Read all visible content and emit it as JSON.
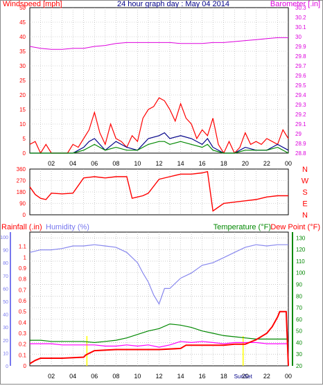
{
  "chart_data": [
    {
      "type": "line",
      "title": "24 hour graph day : May 04 2014",
      "ylabel_left": "Windspeed [mph]",
      "ylabel_right": "Barometer [.in]",
      "x_ticks": [
        "02",
        "04",
        "06",
        "08",
        "10",
        "12",
        "14",
        "16",
        "18",
        "20",
        "22",
        "00"
      ],
      "ylim_left": [
        0,
        50
      ],
      "yticks_left": [
        0,
        5,
        10,
        15,
        20,
        25,
        30,
        35,
        40,
        45,
        50
      ],
      "ylim_right": [
        28.8,
        30.3
      ],
      "yticks_right": [
        "28.8",
        "28.9",
        "29",
        "29.1",
        "29.2",
        "29.3",
        "29.4",
        "29.5",
        "29.6",
        "29.7",
        "29.8",
        "29.9",
        "30",
        "30.1",
        "30.2",
        "30.3"
      ],
      "grid": true,
      "series": [
        {
          "name": "Barometer",
          "axis": "right",
          "color": "#dd00dd",
          "x": [
            0,
            1,
            2,
            3,
            4,
            5,
            6,
            7,
            8,
            9,
            10,
            11,
            12,
            13,
            14,
            15,
            16,
            17,
            18,
            19,
            20,
            21,
            22,
            23,
            24
          ],
          "values": [
            29.9,
            29.88,
            29.87,
            29.87,
            29.88,
            29.88,
            29.9,
            29.91,
            29.93,
            29.94,
            29.94,
            29.94,
            29.94,
            29.94,
            29.93,
            29.93,
            29.93,
            29.94,
            29.94,
            29.95,
            29.96,
            29.97,
            29.98,
            29.99,
            29.99
          ]
        },
        {
          "name": "Wind gust",
          "axis": "left",
          "color": "#ff0000",
          "x": [
            0,
            0.5,
            1,
            1.5,
            2,
            2.5,
            3,
            3.5,
            4,
            4.5,
            5,
            5.5,
            6,
            6.5,
            7,
            7.5,
            8,
            8.5,
            9,
            9.5,
            10,
            10.5,
            11,
            11.5,
            12,
            12.5,
            13,
            13.5,
            14,
            14.5,
            15,
            15.5,
            16,
            16.5,
            17,
            17.5,
            18,
            18.5,
            19,
            19.5,
            20,
            20.5,
            21,
            21.5,
            22,
            22.5,
            23,
            23.5,
            24
          ],
          "values": [
            3,
            4,
            0,
            3,
            0,
            0,
            0,
            0,
            3,
            2,
            5,
            8,
            14,
            7,
            3,
            10,
            5,
            4,
            2,
            6,
            4,
            12,
            15,
            16,
            19,
            18,
            15,
            11,
            17,
            12,
            10,
            5,
            8,
            6,
            12,
            3,
            0,
            4,
            0,
            2,
            7,
            3,
            4,
            3,
            5,
            4,
            3,
            8,
            5
          ]
        },
        {
          "name": "Wind speed",
          "axis": "left",
          "color": "#000088",
          "x": [
            0,
            1,
            2,
            3,
            4,
            5,
            5.5,
            6,
            6.5,
            7,
            8,
            9,
            10,
            11,
            12,
            12.5,
            13,
            14,
            15,
            16,
            16.5,
            17,
            18,
            19,
            20,
            21,
            22,
            23,
            24
          ],
          "values": [
            0,
            0,
            0,
            0,
            0,
            2,
            4,
            5,
            3,
            1,
            4,
            2,
            1,
            5,
            6,
            7,
            5,
            6,
            5,
            3,
            5,
            2,
            0,
            0,
            2,
            1,
            1,
            3,
            1
          ]
        },
        {
          "name": "Wind average",
          "axis": "left",
          "color": "#008800",
          "x": [
            0,
            1,
            2,
            3,
            4,
            5,
            5.5,
            6,
            6.5,
            7,
            8,
            9,
            10,
            11,
            12,
            12.5,
            13,
            14,
            15,
            16,
            16.5,
            17,
            18,
            19,
            20,
            21,
            22,
            23,
            24
          ],
          "values": [
            0,
            0,
            0,
            0,
            0,
            1,
            2,
            3,
            2,
            1,
            2,
            1,
            1,
            3,
            4,
            4,
            3,
            4,
            3,
            2,
            3,
            1,
            0,
            0,
            1,
            1,
            1,
            2,
            0
          ]
        }
      ]
    },
    {
      "type": "line",
      "ylabel": "Wind direction",
      "ylim": [
        0,
        360
      ],
      "yticks": [
        0,
        90,
        180,
        270,
        360
      ],
      "compass_labels": [
        "N",
        "W",
        "S",
        "E",
        "N"
      ],
      "x_ticks": [
        "02",
        "04",
        "06",
        "08",
        "10",
        "12",
        "14",
        "16",
        "18",
        "20",
        "22",
        "00"
      ],
      "series": [
        {
          "name": "Wind direction",
          "color": "#ff0000",
          "x": [
            0,
            0.5,
            1,
            1.5,
            2,
            3,
            4,
            5,
            6,
            7,
            8,
            9,
            9.5,
            10,
            10.5,
            11,
            12,
            13,
            14,
            15,
            16,
            16.5,
            17,
            17.5,
            18,
            19,
            20,
            21,
            22,
            23,
            24
          ],
          "values": [
            220,
            160,
            130,
            120,
            170,
            165,
            170,
            290,
            300,
            290,
            300,
            300,
            130,
            140,
            150,
            170,
            280,
            300,
            320,
            320,
            330,
            340,
            30,
            60,
            90,
            100,
            110,
            120,
            140,
            150,
            150
          ]
        }
      ]
    },
    {
      "type": "line",
      "ylabel_left_1": "Rainfall (.in)",
      "ylabel_left_2": "Humidity (%)",
      "ylabel_right_1": "Temperature (°F)",
      "ylabel_right_2": "Dew Point (°F)",
      "x_ticks": [
        "02",
        "04",
        "06",
        "08",
        "10",
        "12",
        "14",
        "16",
        "18",
        "20",
        "22",
        "00"
      ],
      "annotation": "SunSet",
      "humidity_ticks": [
        0,
        10,
        20,
        30,
        40,
        50,
        60,
        70,
        80,
        90,
        100
      ],
      "rain_ticks": [
        "0",
        "0.1",
        "0.2",
        "0.3",
        "0.4",
        "0.5",
        "0.6",
        "0.7",
        "0.8",
        "0.9",
        "1",
        "1.1"
      ],
      "temp_ticks": [
        20,
        30,
        40,
        50,
        60,
        70,
        80,
        90,
        100,
        110,
        120,
        130
      ],
      "ylim_humidity": [
        0,
        100
      ],
      "ylim_rain": [
        0,
        1.2
      ],
      "ylim_temp": [
        20,
        135
      ],
      "series": [
        {
          "name": "Humidity",
          "axis": "humidity",
          "color": "#8888ee",
          "x": [
            0,
            1,
            2,
            3,
            4,
            5,
            6,
            7,
            8,
            9,
            10,
            10.5,
            11,
            11.5,
            12,
            12.5,
            13,
            14,
            15,
            16,
            17,
            18,
            19,
            20,
            21,
            22,
            23,
            24
          ],
          "values": [
            88,
            90,
            90,
            91,
            93,
            93,
            94,
            93,
            92,
            88,
            80,
            72,
            65,
            55,
            48,
            60,
            60,
            68,
            72,
            78,
            80,
            84,
            88,
            92,
            94,
            93,
            94,
            94
          ]
        },
        {
          "name": "Temperature",
          "axis": "temp",
          "color": "#008800",
          "x": [
            0,
            1,
            2,
            3,
            4,
            5,
            6,
            7,
            8,
            9,
            10,
            11,
            12,
            13,
            14,
            15,
            16,
            17,
            18,
            19,
            20,
            21,
            22,
            23,
            24
          ],
          "values": [
            42,
            42,
            41,
            41,
            41,
            41,
            40,
            41,
            42,
            44,
            47,
            50,
            52,
            56,
            55,
            53,
            50,
            48,
            46,
            45,
            44,
            43,
            43,
            43,
            43
          ]
        },
        {
          "name": "Dew Point",
          "axis": "temp",
          "color": "#ff00ff",
          "x": [
            0,
            1,
            2,
            3,
            4,
            5,
            6,
            7,
            8,
            9,
            10,
            11,
            12,
            13,
            14,
            15,
            16,
            17,
            18,
            19,
            20,
            21,
            22,
            23,
            24
          ],
          "values": [
            39,
            39,
            39,
            38,
            38,
            38,
            38,
            37,
            37,
            38,
            37,
            38,
            36,
            38,
            41,
            40,
            41,
            40,
            39,
            40,
            40,
            40,
            39,
            39,
            39
          ]
        },
        {
          "name": "Rainfall",
          "axis": "rain",
          "color": "#ff0000",
          "x": [
            0,
            0.5,
            1,
            3,
            5,
            5.2,
            6,
            8,
            10,
            12,
            14,
            14.5,
            16,
            17,
            18,
            19,
            20,
            20.5,
            21,
            22,
            22.5,
            23,
            23.2,
            23.8,
            24
          ],
          "values": [
            0.02,
            0.05,
            0.07,
            0.07,
            0.08,
            0.1,
            0.14,
            0.15,
            0.15,
            0.15,
            0.16,
            0.19,
            0.19,
            0.19,
            0.19,
            0.2,
            0.2,
            0.22,
            0.24,
            0.3,
            0.36,
            0.45,
            0.5,
            0.5,
            0.0
          ]
        }
      ]
    }
  ]
}
